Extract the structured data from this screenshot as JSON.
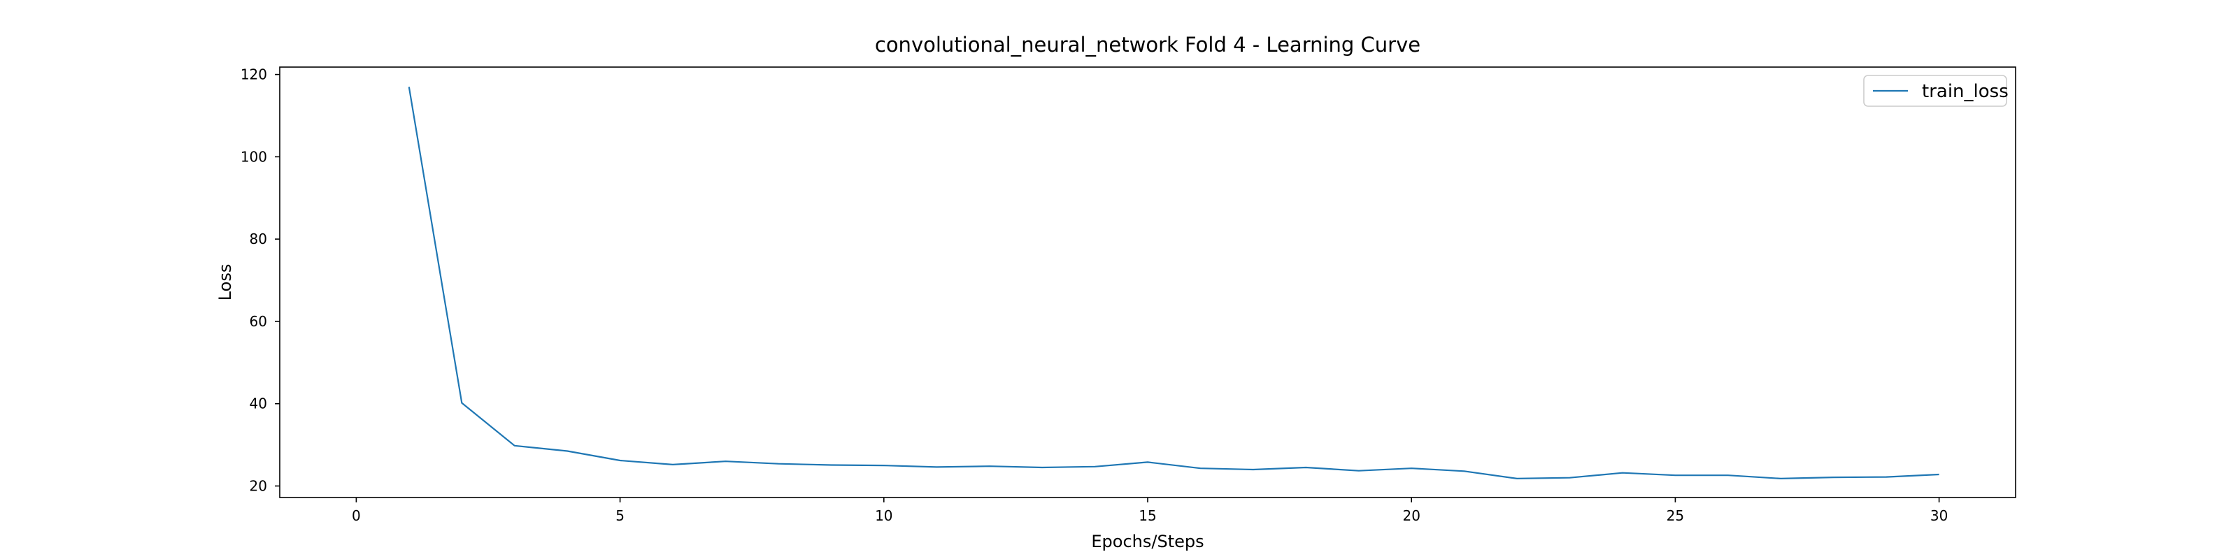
{
  "chart_data": {
    "type": "line",
    "title": "convolutional_neural_network Fold 4 - Learning Curve",
    "xlabel": "Epochs/Steps",
    "ylabel": "Loss",
    "xlim": [
      -1.45,
      31.45
    ],
    "ylim": [
      17.2,
      121.8
    ],
    "xticks": [
      0,
      5,
      10,
      15,
      20,
      25,
      30
    ],
    "yticks": [
      20,
      40,
      60,
      80,
      100,
      120
    ],
    "grid": false,
    "legend_position": "upper right",
    "series": [
      {
        "name": "train_loss",
        "color": "#1f77b4",
        "x": [
          1,
          2,
          3,
          4,
          5,
          6,
          7,
          8,
          9,
          10,
          11,
          12,
          13,
          14,
          15,
          16,
          17,
          18,
          19,
          20,
          21,
          22,
          23,
          24,
          25,
          26,
          27,
          28,
          29,
          30
        ],
        "y": [
          117.0,
          40.2,
          29.8,
          28.5,
          26.2,
          25.2,
          26.0,
          25.4,
          25.1,
          25.0,
          24.6,
          24.8,
          24.5,
          24.7,
          25.8,
          24.3,
          24.0,
          24.5,
          23.7,
          24.3,
          23.6,
          21.8,
          22.0,
          23.2,
          22.6,
          22.6,
          21.8,
          22.1,
          22.2,
          22.8
        ]
      }
    ]
  }
}
